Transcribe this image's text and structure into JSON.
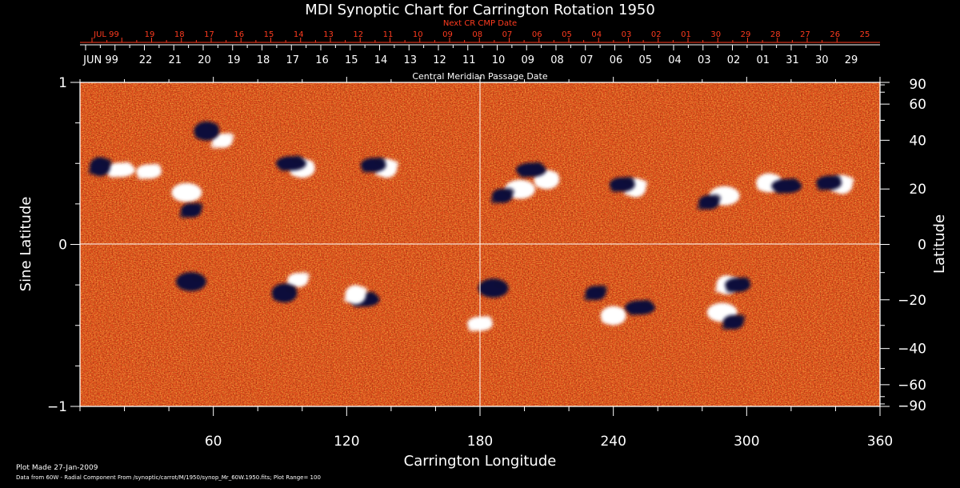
{
  "chart_data": {
    "type": "heatmap",
    "title": "MDI Synoptic Chart for Carrington Rotation 1950",
    "xlabel": "Carrington Longitude",
    "ylabel_left": "Sine Latitude",
    "ylabel_right": "Latitude",
    "top_red_axis_title": "Next CR CMP Date",
    "top_white_axis_title": "Central Meridian Passage Date",
    "xlim": [
      0,
      360
    ],
    "ylim": [
      -1,
      1
    ],
    "x_ticks": [
      60,
      120,
      180,
      240,
      300,
      360
    ],
    "x_tick_labels": [
      "60",
      "120",
      "180",
      "240",
      "300",
      "360"
    ],
    "y_left_ticks": [
      1,
      0,
      -1
    ],
    "y_left_tick_labels": [
      "1",
      "0",
      "−1"
    ],
    "y_right_ticks": [
      90,
      60,
      40,
      20,
      0,
      -20,
      -40,
      -60,
      -90
    ],
    "y_right_tick_labels": [
      "90",
      "60",
      "40",
      "20",
      "0",
      "−20",
      "−40",
      "−60",
      "−90"
    ],
    "top_red_labels": [
      "JUL 99",
      "19",
      "18",
      "17",
      "16",
      "15",
      "14",
      "13",
      "12",
      "11",
      "10",
      "09",
      "08",
      "07",
      "06",
      "05",
      "04",
      "03",
      "02",
      "01",
      "30",
      "29",
      "28",
      "27",
      "26",
      "25"
    ],
    "top_white_labels": [
      "JUN 99",
      "22",
      "21",
      "20",
      "19",
      "18",
      "17",
      "16",
      "15",
      "14",
      "13",
      "12",
      "11",
      "10",
      "09",
      "08",
      "07",
      "06",
      "05",
      "04",
      "03",
      "02",
      "01",
      "31",
      "30",
      "29"
    ],
    "crosshair": {
      "longitude": 180,
      "sine_latitude": 0
    },
    "plot_range": 100,
    "active_regions": [
      {
        "lon": 64,
        "sinlat": 0.64,
        "positive": true
      },
      {
        "lon": 57,
        "sinlat": 0.7,
        "positive": false
      },
      {
        "lon": 18,
        "sinlat": 0.46,
        "positive": true
      },
      {
        "lon": 9,
        "sinlat": 0.48,
        "positive": false
      },
      {
        "lon": 31,
        "sinlat": 0.45,
        "positive": true
      },
      {
        "lon": 48,
        "sinlat": 0.32,
        "positive": true
      },
      {
        "lon": 50,
        "sinlat": 0.21,
        "positive": false
      },
      {
        "lon": 100,
        "sinlat": 0.47,
        "positive": true
      },
      {
        "lon": 95,
        "sinlat": 0.5,
        "positive": false
      },
      {
        "lon": 138,
        "sinlat": 0.47,
        "positive": true
      },
      {
        "lon": 132,
        "sinlat": 0.49,
        "positive": false
      },
      {
        "lon": 198,
        "sinlat": 0.34,
        "positive": true
      },
      {
        "lon": 190,
        "sinlat": 0.3,
        "positive": false
      },
      {
        "lon": 210,
        "sinlat": 0.4,
        "positive": true
      },
      {
        "lon": 203,
        "sinlat": 0.46,
        "positive": false
      },
      {
        "lon": 250,
        "sinlat": 0.35,
        "positive": true
      },
      {
        "lon": 244,
        "sinlat": 0.37,
        "positive": false
      },
      {
        "lon": 290,
        "sinlat": 0.3,
        "positive": true
      },
      {
        "lon": 283,
        "sinlat": 0.26,
        "positive": false
      },
      {
        "lon": 310,
        "sinlat": 0.38,
        "positive": true
      },
      {
        "lon": 318,
        "sinlat": 0.36,
        "positive": false
      },
      {
        "lon": 343,
        "sinlat": 0.37,
        "positive": true
      },
      {
        "lon": 337,
        "sinlat": 0.38,
        "positive": false
      },
      {
        "lon": 50,
        "sinlat": -0.23,
        "positive": false
      },
      {
        "lon": 98,
        "sinlat": -0.22,
        "positive": true
      },
      {
        "lon": 92,
        "sinlat": -0.3,
        "positive": false
      },
      {
        "lon": 128,
        "sinlat": -0.34,
        "positive": false
      },
      {
        "lon": 124,
        "sinlat": -0.31,
        "positive": true
      },
      {
        "lon": 180,
        "sinlat": -0.49,
        "positive": true
      },
      {
        "lon": 186,
        "sinlat": -0.27,
        "positive": false
      },
      {
        "lon": 232,
        "sinlat": -0.3,
        "positive": false
      },
      {
        "lon": 240,
        "sinlat": -0.44,
        "positive": true
      },
      {
        "lon": 252,
        "sinlat": -0.39,
        "positive": false
      },
      {
        "lon": 291,
        "sinlat": -0.25,
        "positive": true
      },
      {
        "lon": 296,
        "sinlat": -0.25,
        "positive": false
      },
      {
        "lon": 289,
        "sinlat": -0.42,
        "positive": true
      },
      {
        "lon": 294,
        "sinlat": -0.48,
        "positive": false
      }
    ]
  },
  "footer": {
    "plot_made": "Plot Made 27-Jan-2009",
    "source": "Data from 60W - Radial Component From /synoptic/carrot/M/1950/synop_Mr_60W.1950.fits; Plot Range=  100"
  },
  "colors": {
    "background": "#000000",
    "field_base": "#d9481a",
    "field_positive": "#ffffff",
    "field_negative": "#100a3a",
    "red_text": "#ff3b1f",
    "axis": "#ffffff"
  }
}
